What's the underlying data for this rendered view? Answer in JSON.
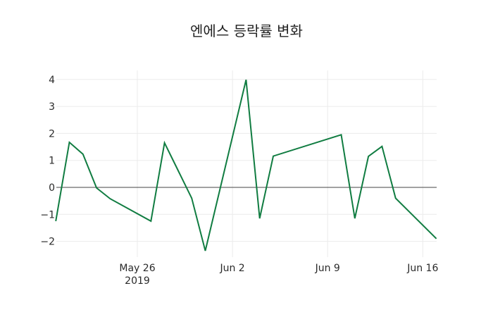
{
  "chart_data": {
    "type": "line",
    "title": "엔에스 등락률 변화",
    "xlabel": "",
    "ylabel": "",
    "x": [
      "2019-05-20",
      "2019-05-21",
      "2019-05-22",
      "2019-05-23",
      "2019-05-24",
      "2019-05-27",
      "2019-05-28",
      "2019-05-30",
      "2019-05-31",
      "2019-06-03",
      "2019-06-04",
      "2019-06-05",
      "2019-06-10",
      "2019-06-11",
      "2019-06-12",
      "2019-06-13",
      "2019-06-14",
      "2019-06-17"
    ],
    "series": [
      {
        "name": "등락률",
        "color": "#107c41",
        "values": [
          -1.25,
          1.67,
          1.23,
          -0.02,
          -0.42,
          -1.25,
          1.65,
          -0.4,
          -2.35,
          3.99,
          -1.15,
          1.16,
          1.95,
          -1.15,
          1.15,
          1.52,
          -0.4,
          -1.9
        ]
      }
    ],
    "ylim": [
      -2.6,
      4.35
    ],
    "yticks": [
      4,
      3,
      2,
      1,
      0,
      -1,
      -2
    ],
    "ytick_labels": [
      "4",
      "3",
      "2",
      "1",
      "0",
      "−1",
      "−2"
    ],
    "xticks": [
      "2019-05-26",
      "2019-06-02",
      "2019-06-09",
      "2019-06-16"
    ],
    "xtick_labels": [
      "May 26",
      "Jun 2",
      "Jun 9",
      "Jun 16"
    ],
    "xtick_sublabel": "2019",
    "grid": true,
    "zero_line": true,
    "legend": false
  }
}
